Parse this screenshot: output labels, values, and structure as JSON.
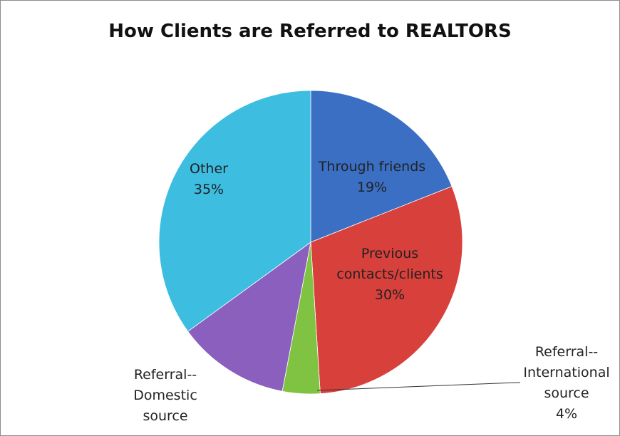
{
  "chart_data": {
    "type": "pie",
    "title": "How Clients are Referred to REALTORS",
    "categories": [
      "Through friends",
      "Previous\ncontacts/clients",
      "Referral--\nInternational\nsource",
      "Referral--\nDomestic\nsource",
      "Other"
    ],
    "values": [
      19,
      30,
      4,
      12,
      35
    ],
    "value_labels": [
      "19%",
      "30%",
      "4%",
      null,
      "35%"
    ],
    "colors": [
      "#3b6fc3",
      "#d8403b",
      "#80c342",
      "#8a5fbe",
      "#3dbde0"
    ]
  }
}
